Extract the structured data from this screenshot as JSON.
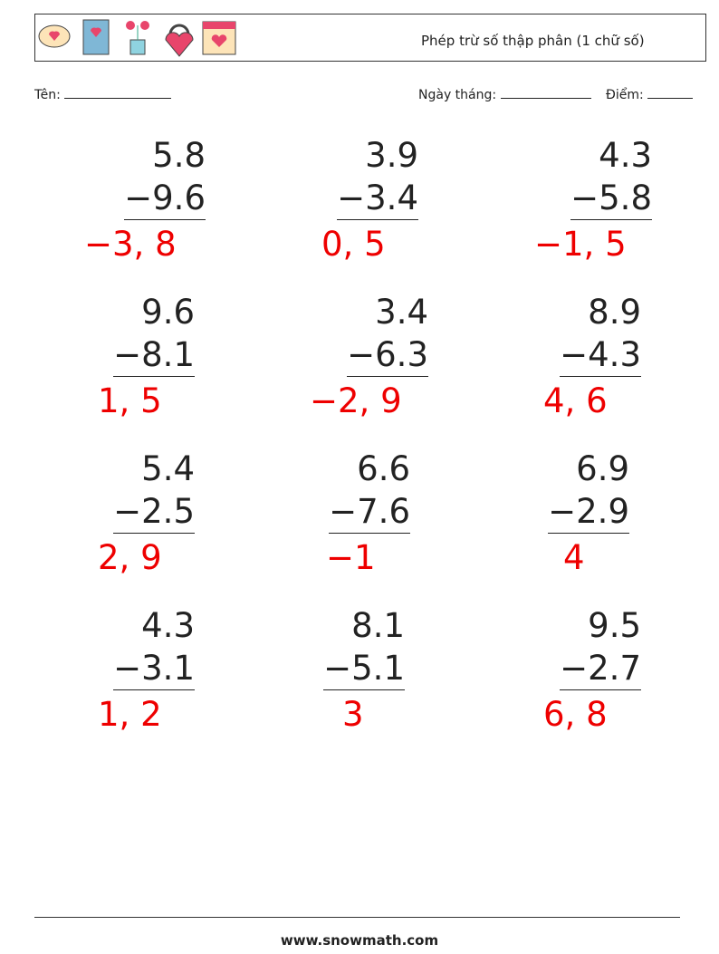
{
  "header": {
    "title": "Phép trừ số thập phân (1 chữ số)"
  },
  "fields": {
    "name": "Tên:",
    "date": "Ngày tháng:",
    "score": "Điểm:"
  },
  "problems": [
    {
      "top": "5.8",
      "bottom": "−9.6",
      "answer": "−3, 8"
    },
    {
      "top": "3.9",
      "bottom": "−3.4",
      "answer": "0, 5"
    },
    {
      "top": "4.3",
      "bottom": "−5.8",
      "answer": "−1, 5"
    },
    {
      "top": "9.6",
      "bottom": "−8.1",
      "answer": "1, 5"
    },
    {
      "top": "3.4",
      "bottom": "−6.3",
      "answer": "−2, 9"
    },
    {
      "top": "8.9",
      "bottom": "−4.3",
      "answer": "4, 6"
    },
    {
      "top": "5.4",
      "bottom": "−2.5",
      "answer": "2, 9"
    },
    {
      "top": "6.6",
      "bottom": "−7.6",
      "answer": "−1"
    },
    {
      "top": "6.9",
      "bottom": "−2.9",
      "answer": "4"
    },
    {
      "top": "4.3",
      "bottom": "−3.1",
      "answer": "1, 2"
    },
    {
      "top": "8.1",
      "bottom": "−5.1",
      "answer": "3"
    },
    {
      "top": "9.5",
      "bottom": "−2.7",
      "answer": "6, 8"
    }
  ],
  "footer": {
    "site": "www.snowmath.com"
  }
}
